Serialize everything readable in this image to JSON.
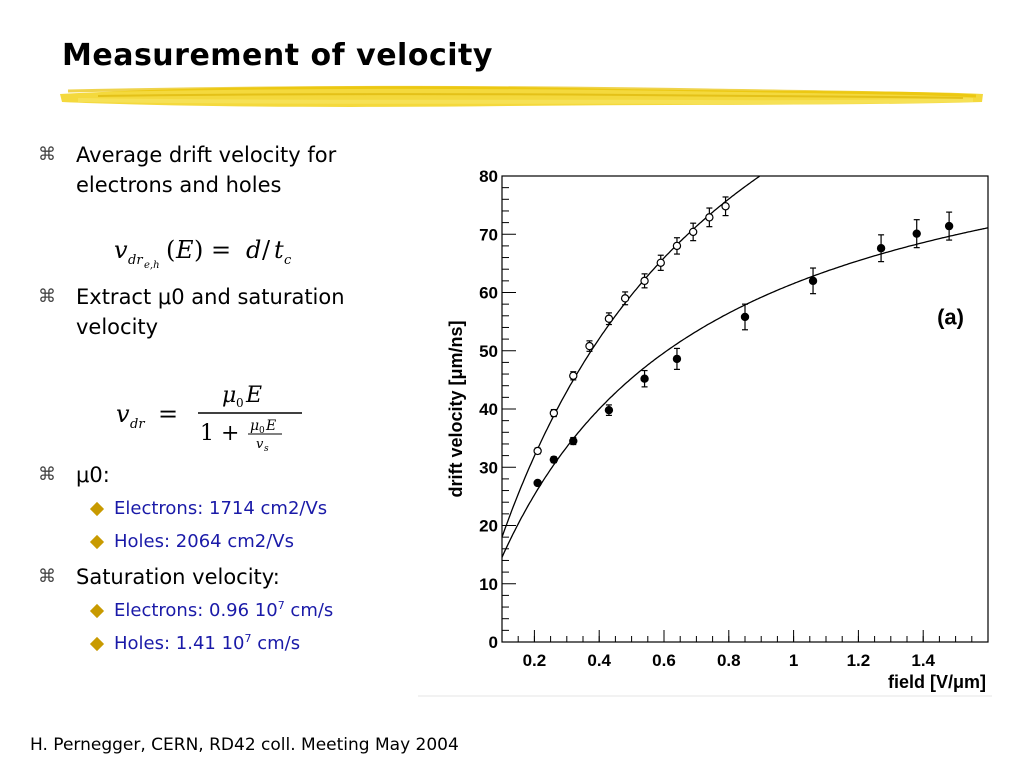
{
  "slide": {
    "title": "Measurement of velocity",
    "bullets": [
      {
        "marker": "⌘",
        "text": "Average drift velocity for electrons and holes"
      },
      {
        "marker": "⌘",
        "text": "Extract μ0 and saturation velocity"
      },
      {
        "marker": "⌘",
        "text": "μ0:"
      },
      {
        "marker": "⌘",
        "text": "Saturation velocity:"
      }
    ],
    "sub_bullets": {
      "mu_electrons": "Electrons: 1714 cm2/Vs",
      "mu_holes": "Holes: 2064 cm2/Vs",
      "vs_electrons_pre": "Electrons: 0.96 10",
      "vs_electrons_exp": "7",
      "vs_electrons_post": " cm/s",
      "vs_holes_pre": "Holes: 1.41 10",
      "vs_holes_exp": "7",
      "vs_holes_post": " cm/s"
    },
    "footer": "H. Pernegger, CERN, RD42 coll. Meeting May 2004"
  },
  "colors": {
    "sub_bullet_text": "#1a1aa8",
    "diamond": "#c89a00",
    "highlight": "#f2d21b"
  },
  "chart_data": {
    "type": "scatter",
    "title": "",
    "panel_label": "(a)",
    "xlabel": "field [V/μm]",
    "ylabel": "drift velocity [μm/ns]",
    "xlim": [
      0.1,
      1.6
    ],
    "ylim": [
      0,
      80
    ],
    "x_ticks": [
      0.2,
      0.4,
      0.6,
      0.8,
      1,
      1.2,
      1.4
    ],
    "x_tick_labels": [
      "0.2",
      "0.4",
      "0.6",
      "0.8",
      "1",
      "1.2",
      "1.4"
    ],
    "y_ticks": [
      0,
      10,
      20,
      30,
      40,
      50,
      60,
      70,
      80
    ],
    "y_tick_labels": [
      "0",
      "10",
      "20",
      "30",
      "40",
      "50",
      "60",
      "70",
      "80"
    ],
    "grid": false,
    "legend": null,
    "series": [
      {
        "marker": "open-circle",
        "x": [
          0.21,
          0.26,
          0.32,
          0.37,
          0.43,
          0.48,
          0.54,
          0.59,
          0.64,
          0.69,
          0.74,
          0.79
        ],
        "y": [
          32.8,
          39.3,
          45.7,
          50.8,
          55.5,
          59.0,
          62.0,
          65.1,
          68.0,
          70.4,
          72.9,
          74.8
        ],
        "err": [
          0.5,
          0.6,
          0.7,
          0.9,
          1.0,
          1.1,
          1.2,
          1.3,
          1.4,
          1.5,
          1.6,
          1.6
        ],
        "fit": {
          "mu0": 0.2064,
          "vs": 141
        }
      },
      {
        "marker": "filled-circle",
        "x": [
          0.21,
          0.26,
          0.32,
          0.43,
          0.54,
          0.64,
          0.85,
          1.06,
          1.27,
          1.38,
          1.48
        ],
        "y": [
          27.3,
          31.3,
          34.5,
          39.8,
          45.2,
          48.6,
          55.8,
          62.0,
          67.6,
          70.1,
          71.4
        ],
        "err": [
          0.4,
          0.5,
          0.6,
          0.9,
          1.4,
          1.8,
          2.2,
          2.2,
          2.3,
          2.4,
          2.4
        ],
        "fit": {
          "mu0": 0.1714,
          "vs": 96
        }
      }
    ]
  }
}
